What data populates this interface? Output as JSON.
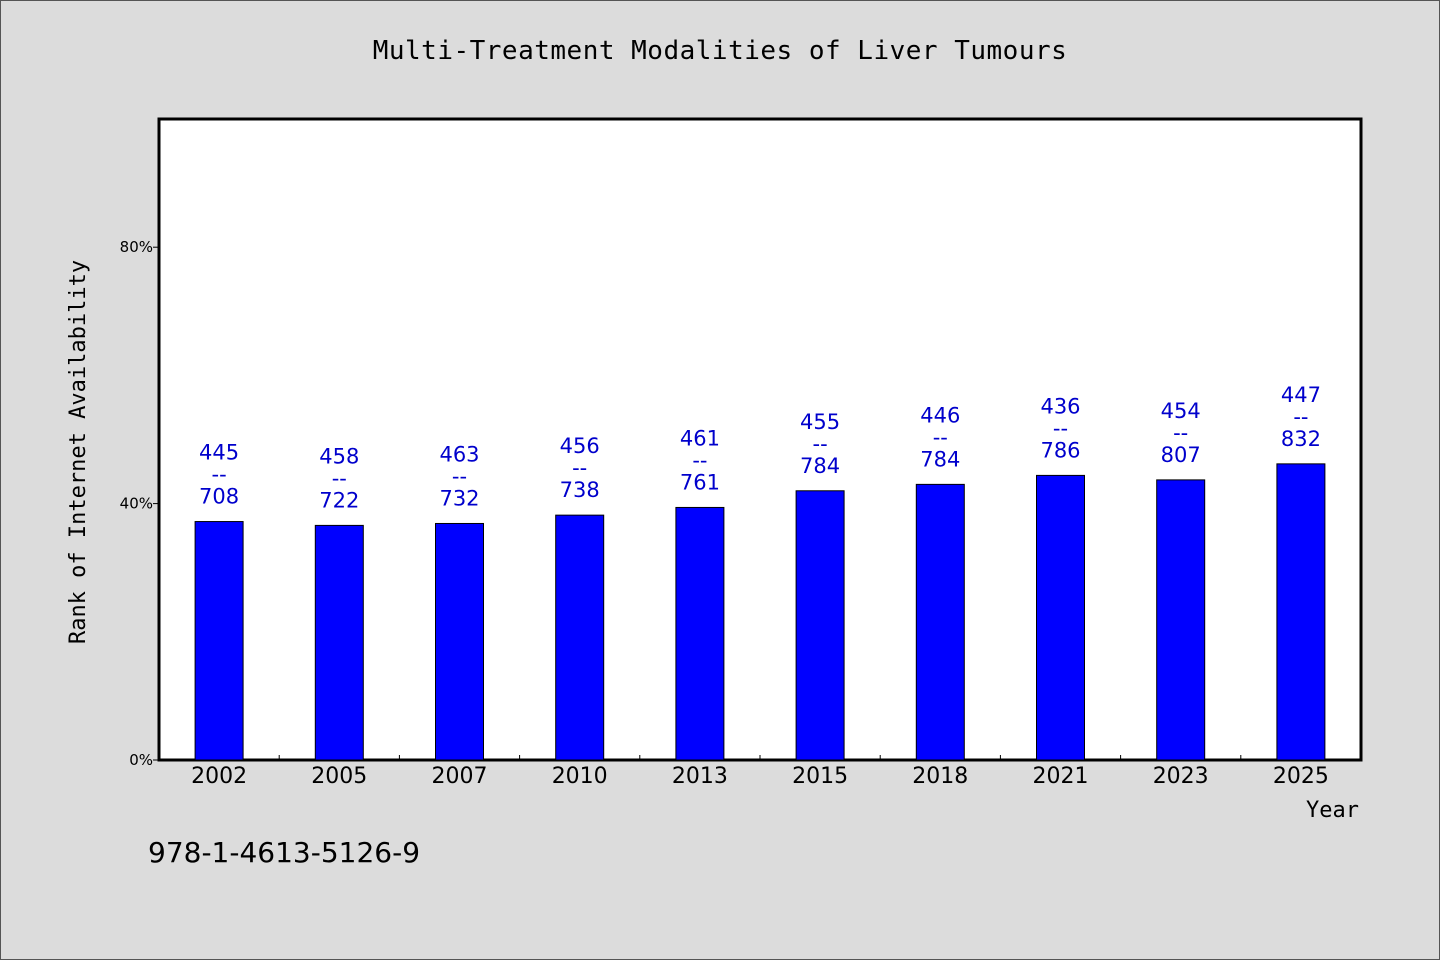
{
  "chart_data": {
    "type": "bar",
    "title": "Multi-Treatment Modalities of Liver Tumours",
    "xlabel": "Year",
    "ylabel": "Rank of Internet Availability",
    "categories": [
      "2002",
      "2005",
      "2007",
      "2010",
      "2013",
      "2015",
      "2018",
      "2021",
      "2023",
      "2025"
    ],
    "series": [
      {
        "values": [
          37.2,
          36.6,
          36.9,
          38.2,
          39.4,
          42.0,
          43.0,
          44.4,
          43.7,
          46.2
        ],
        "labels": [
          [
            "445",
            "--",
            "708"
          ],
          [
            "458",
            "--",
            "722"
          ],
          [
            "463",
            "--",
            "732"
          ],
          [
            "456",
            "--",
            "738"
          ],
          [
            "461",
            "--",
            "761"
          ],
          [
            "455",
            "--",
            "784"
          ],
          [
            "446",
            "--",
            "784"
          ],
          [
            "436",
            "--",
            "786"
          ],
          [
            "454",
            "--",
            "807"
          ],
          [
            "447",
            "--",
            "832"
          ]
        ]
      }
    ],
    "ylim": [
      0,
      100
    ],
    "yticks": [
      0,
      40,
      80
    ],
    "ytick_labels": [
      "0%",
      "40%",
      "80%"
    ],
    "grid": false,
    "colors": {
      "bar": "#0000ff",
      "bar_outline": "#000000",
      "label": "#0000cc",
      "plot_bg": "#ffffff",
      "page_bg": "#dcdcdc"
    }
  },
  "footer": {
    "isbn": "978-1-4613-5126-9"
  }
}
